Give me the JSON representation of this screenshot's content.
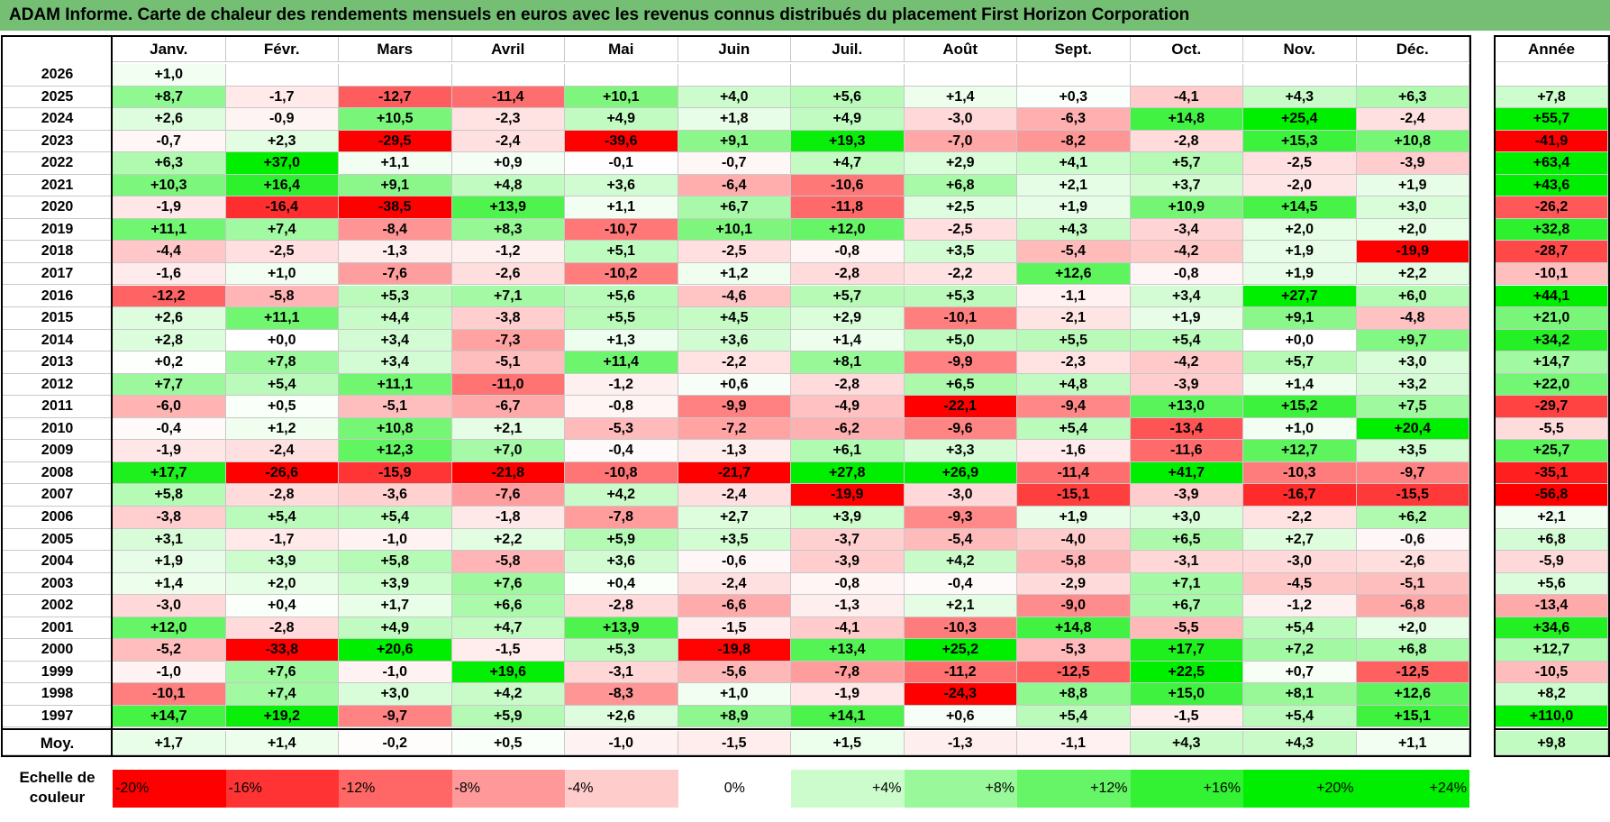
{
  "title": "ADAM Informe. Carte de chaleur des rendements mensuels en euros avec les revenus connus distribués du placement First Horizon Corporation",
  "months": [
    "Janv.",
    "Févr.",
    "Mars",
    "Avril",
    "Mai",
    "Juin",
    "Juil.",
    "Août",
    "Sept.",
    "Oct.",
    "Nov.",
    "Déc."
  ],
  "annual_header": "Année",
  "avg_label": "Moy.",
  "legend_label": "Echelle de couleur",
  "legend": [
    {
      "label": "-20%",
      "value": -20
    },
    {
      "label": "-16%",
      "value": -16
    },
    {
      "label": "-12%",
      "value": -12
    },
    {
      "label": "-8%",
      "value": -8
    },
    {
      "label": "-4%",
      "value": -4
    },
    {
      "label": "0%",
      "value": 0
    },
    {
      "label": "+4%",
      "value": 4
    },
    {
      "label": "+8%",
      "value": 8
    },
    {
      "label": "+12%",
      "value": 12
    },
    {
      "label": "+16%",
      "value": 16
    },
    {
      "label": "+20%",
      "value": 20
    },
    {
      "label": "+24%",
      "value": 24
    }
  ],
  "colors": {
    "neg_max": "#ff0000",
    "pos_max": "#00ee00",
    "title_bg": "#75bf75",
    "border": "#000000"
  },
  "chart_data": {
    "type": "heatmap",
    "title": "ADAM Informe. Carte de chaleur des rendements mensuels en euros avec les revenus connus distribués du placement First Horizon Corporation",
    "x_categories": [
      "Janv.",
      "Févr.",
      "Mars",
      "Avril",
      "Mai",
      "Juin",
      "Juil.",
      "Août",
      "Sept.",
      "Oct.",
      "Nov.",
      "Déc."
    ],
    "y_categories": [
      "2026",
      "2025",
      "2024",
      "2023",
      "2022",
      "2021",
      "2020",
      "2019",
      "2018",
      "2017",
      "2016",
      "2015",
      "2014",
      "2013",
      "2012",
      "2011",
      "2010",
      "2009",
      "2008",
      "2007",
      "2006",
      "2005",
      "2004",
      "2003",
      "2002",
      "2001",
      "2000",
      "1999",
      "1998",
      "1997"
    ],
    "rows": [
      {
        "year": "2026",
        "values": [
          "+1,0",
          "",
          "",
          "",
          "",
          "",
          "",
          "",
          "",
          "",
          "",
          ""
        ],
        "annual": ""
      },
      {
        "year": "2025",
        "values": [
          "+8,7",
          "-1,7",
          "-12,7",
          "-11,4",
          "+10,1",
          "+4,0",
          "+5,6",
          "+1,4",
          "+0,3",
          "-4,1",
          "+4,3",
          "+6,3"
        ],
        "annual": "+7,8"
      },
      {
        "year": "2024",
        "values": [
          "+2,6",
          "-0,9",
          "+10,5",
          "-2,3",
          "+4,9",
          "+1,8",
          "+4,9",
          "-3,0",
          "-6,3",
          "+14,8",
          "+25,4",
          "-2,4"
        ],
        "annual": "+55,7"
      },
      {
        "year": "2023",
        "values": [
          "-0,7",
          "+2,3",
          "-29,5",
          "-2,4",
          "-39,6",
          "+9,1",
          "+19,3",
          "-7,0",
          "-8,2",
          "-2,8",
          "+15,3",
          "+10,8"
        ],
        "annual": "-41,9"
      },
      {
        "year": "2022",
        "values": [
          "+6,3",
          "+37,0",
          "+1,1",
          "+0,9",
          "-0,1",
          "-0,7",
          "+4,7",
          "+2,9",
          "+4,1",
          "+5,7",
          "-2,5",
          "-3,9"
        ],
        "annual": "+63,4"
      },
      {
        "year": "2021",
        "values": [
          "+10,3",
          "+16,4",
          "+9,1",
          "+4,8",
          "+3,6",
          "-6,4",
          "-10,6",
          "+6,8",
          "+2,1",
          "+3,7",
          "-2,0",
          "+1,9"
        ],
        "annual": "+43,6"
      },
      {
        "year": "2020",
        "values": [
          "-1,9",
          "-16,4",
          "-38,5",
          "+13,9",
          "+1,1",
          "+6,7",
          "-11,8",
          "+2,5",
          "+1,9",
          "+10,9",
          "+14,5",
          "+3,0"
        ],
        "annual": "-26,2"
      },
      {
        "year": "2019",
        "values": [
          "+11,1",
          "+7,4",
          "-8,4",
          "+8,3",
          "-10,7",
          "+10,1",
          "+12,0",
          "-2,5",
          "+4,3",
          "-3,4",
          "+2,0",
          "+2,0"
        ],
        "annual": "+32,8"
      },
      {
        "year": "2018",
        "values": [
          "-4,4",
          "-2,5",
          "-1,3",
          "-1,2",
          "+5,1",
          "-2,5",
          "-0,8",
          "+3,5",
          "-5,4",
          "-4,2",
          "+1,9",
          "-19,9"
        ],
        "annual": "-28,7"
      },
      {
        "year": "2017",
        "values": [
          "-1,6",
          "+1,0",
          "-7,6",
          "-2,6",
          "-10,2",
          "+1,2",
          "-2,8",
          "-2,2",
          "+12,6",
          "-0,8",
          "+1,9",
          "+2,2"
        ],
        "annual": "-10,1"
      },
      {
        "year": "2016",
        "values": [
          "-12,2",
          "-5,8",
          "+5,3",
          "+7,1",
          "+5,6",
          "-4,6",
          "+5,7",
          "+5,3",
          "-1,1",
          "+3,4",
          "+27,7",
          "+6,0"
        ],
        "annual": "+44,1"
      },
      {
        "year": "2015",
        "values": [
          "+2,6",
          "+11,1",
          "+4,4",
          "-3,8",
          "+5,5",
          "+4,5",
          "+2,9",
          "-10,1",
          "-2,1",
          "+1,9",
          "+9,1",
          "-4,8"
        ],
        "annual": "+21,0"
      },
      {
        "year": "2014",
        "values": [
          "+2,8",
          "+0,0",
          "+3,4",
          "-7,3",
          "+1,3",
          "+3,6",
          "+1,4",
          "+5,0",
          "+5,5",
          "+5,4",
          "+0,0",
          "+9,7"
        ],
        "annual": "+34,2"
      },
      {
        "year": "2013",
        "values": [
          "+0,2",
          "+7,8",
          "+3,4",
          "-5,1",
          "+11,4",
          "-2,2",
          "+8,1",
          "-9,9",
          "-2,3",
          "-4,2",
          "+5,7",
          "+3,0"
        ],
        "annual": "+14,7"
      },
      {
        "year": "2012",
        "values": [
          "+7,7",
          "+5,4",
          "+11,1",
          "-11,0",
          "-1,2",
          "+0,6",
          "-2,8",
          "+6,5",
          "+4,8",
          "-3,9",
          "+1,4",
          "+3,2"
        ],
        "annual": "+22,0"
      },
      {
        "year": "2011",
        "values": [
          "-6,0",
          "+0,5",
          "-5,1",
          "-6,7",
          "-0,8",
          "-9,9",
          "-4,9",
          "-22,1",
          "-9,4",
          "+13,0",
          "+15,2",
          "+7,5"
        ],
        "annual": "-29,7"
      },
      {
        "year": "2010",
        "values": [
          "-0,4",
          "+1,2",
          "+10,8",
          "+2,1",
          "-5,3",
          "-7,2",
          "-6,2",
          "-9,6",
          "+5,4",
          "-13,4",
          "+1,0",
          "+20,4"
        ],
        "annual": "-5,5"
      },
      {
        "year": "2009",
        "values": [
          "-1,9",
          "-2,4",
          "+12,3",
          "+7,0",
          "-0,4",
          "-1,3",
          "+6,1",
          "+3,3",
          "-1,6",
          "-11,6",
          "+12,7",
          "+3,5"
        ],
        "annual": "+25,7"
      },
      {
        "year": "2008",
        "values": [
          "+17,7",
          "-26,6",
          "-15,9",
          "-21,8",
          "-10,8",
          "-21,7",
          "+27,8",
          "+26,9",
          "-11,4",
          "+41,7",
          "-10,3",
          "-9,7"
        ],
        "annual": "-35,1"
      },
      {
        "year": "2007",
        "values": [
          "+5,8",
          "-2,8",
          "-3,6",
          "-7,6",
          "+4,2",
          "-2,4",
          "-19,9",
          "-3,0",
          "-15,1",
          "-3,9",
          "-16,7",
          "-15,5"
        ],
        "annual": "-56,8"
      },
      {
        "year": "2006",
        "values": [
          "-3,8",
          "+5,4",
          "+5,4",
          "-1,8",
          "-7,8",
          "+2,7",
          "+3,9",
          "-9,3",
          "+1,9",
          "+3,0",
          "-2,2",
          "+6,2"
        ],
        "annual": "+2,1"
      },
      {
        "year": "2005",
        "values": [
          "+3,1",
          "-1,7",
          "-1,0",
          "+2,2",
          "+5,9",
          "+3,5",
          "-3,7",
          "-5,4",
          "-4,0",
          "+6,5",
          "+2,7",
          "-0,6"
        ],
        "annual": "+6,8"
      },
      {
        "year": "2004",
        "values": [
          "+1,9",
          "+3,9",
          "+5,8",
          "-5,8",
          "+3,6",
          "-0,6",
          "-3,9",
          "+4,2",
          "-5,8",
          "-3,1",
          "-3,0",
          "-2,6"
        ],
        "annual": "-5,9"
      },
      {
        "year": "2003",
        "values": [
          "+1,4",
          "+2,0",
          "+3,9",
          "+7,6",
          "+0,4",
          "-2,4",
          "-0,8",
          "-0,4",
          "-2,9",
          "+7,1",
          "-4,5",
          "-5,1"
        ],
        "annual": "+5,6"
      },
      {
        "year": "2002",
        "values": [
          "-3,0",
          "+0,4",
          "+1,7",
          "+6,6",
          "-2,8",
          "-6,6",
          "-1,3",
          "+2,1",
          "-9,0",
          "+6,7",
          "-1,2",
          "-6,8"
        ],
        "annual": "-13,4"
      },
      {
        "year": "2001",
        "values": [
          "+12,0",
          "-2,8",
          "+4,9",
          "+4,7",
          "+13,9",
          "-1,5",
          "-4,1",
          "-10,3",
          "+14,8",
          "-5,5",
          "+5,4",
          "+2,0"
        ],
        "annual": "+34,6"
      },
      {
        "year": "2000",
        "values": [
          "-5,2",
          "-33,8",
          "+20,6",
          "-1,5",
          "+5,3",
          "-19,8",
          "+13,4",
          "+25,2",
          "-5,3",
          "+17,7",
          "+7,2",
          "+6,8"
        ],
        "annual": "+12,7"
      },
      {
        "year": "1999",
        "values": [
          "-1,0",
          "+7,6",
          "-1,0",
          "+19,6",
          "-3,1",
          "-5,6",
          "-7,8",
          "-11,2",
          "-12,5",
          "+22,5",
          "+0,7",
          "-12,5"
        ],
        "annual": "-10,5"
      },
      {
        "year": "1998",
        "values": [
          "-10,1",
          "+7,4",
          "+3,0",
          "+4,2",
          "-8,3",
          "+1,0",
          "-1,9",
          "-24,3",
          "+8,8",
          "+15,0",
          "+8,1",
          "+12,6"
        ],
        "annual": "+8,2"
      },
      {
        "year": "1997",
        "values": [
          "+14,7",
          "+19,2",
          "-9,7",
          "+5,9",
          "+2,6",
          "+8,9",
          "+14,1",
          "+0,6",
          "+5,4",
          "-1,5",
          "+5,4",
          "+15,1"
        ],
        "annual": "+110,0"
      }
    ],
    "averages": [
      "+1,7",
      "+1,4",
      "-0,2",
      "+0,5",
      "-1,0",
      "-1,5",
      "+1,5",
      "-1,3",
      "-1,1",
      "+4,3",
      "+4,3",
      "+1,1"
    ],
    "average_annual": "+9,8",
    "color_scale": {
      "min": -20,
      "max": 24,
      "unit": "%"
    }
  }
}
